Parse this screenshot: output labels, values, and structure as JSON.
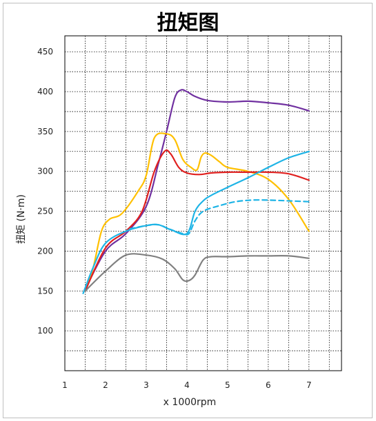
{
  "chart_data": {
    "type": "line",
    "title": "扭矩图",
    "xlabel": "x 1000rpm",
    "ylabel": "扭矩 (N·m)",
    "xlim": [
      1,
      7.8
    ],
    "ylim": [
      50,
      470
    ],
    "x_ticks": [
      "1",
      "2",
      "3",
      "4",
      "5",
      "6",
      "7"
    ],
    "y_ticks": [
      "100",
      "150",
      "200",
      "250",
      "300",
      "350",
      "400",
      "450"
    ],
    "grid": true,
    "legend": "none",
    "series": [
      {
        "color": "#7030a0",
        "style": "solid",
        "points": [
          [
            1.5,
            152
          ],
          [
            2.0,
            200
          ],
          [
            2.5,
            222
          ],
          [
            3.0,
            256
          ],
          [
            3.3,
            310
          ],
          [
            3.5,
            350
          ],
          [
            3.7,
            392
          ],
          [
            3.85,
            402
          ],
          [
            4.0,
            400
          ],
          [
            4.2,
            394
          ],
          [
            4.5,
            389
          ],
          [
            5.0,
            387
          ],
          [
            5.5,
            388
          ],
          [
            6.0,
            386
          ],
          [
            6.5,
            383
          ],
          [
            7.0,
            376
          ]
        ]
      },
      {
        "color": "#ffc000",
        "style": "solid",
        "points": [
          [
            1.5,
            150
          ],
          [
            1.7,
            180
          ],
          [
            1.9,
            225
          ],
          [
            2.1,
            240
          ],
          [
            2.4,
            247
          ],
          [
            2.8,
            275
          ],
          [
            3.0,
            295
          ],
          [
            3.2,
            342
          ],
          [
            3.5,
            347
          ],
          [
            3.7,
            340
          ],
          [
            3.9,
            315
          ],
          [
            4.1,
            305
          ],
          [
            4.25,
            302
          ],
          [
            4.35,
            318
          ],
          [
            4.45,
            323
          ],
          [
            4.6,
            320
          ],
          [
            4.8,
            312
          ],
          [
            5.0,
            305
          ],
          [
            5.5,
            300
          ],
          [
            6.0,
            290
          ],
          [
            6.5,
            265
          ],
          [
            7.0,
            225
          ]
        ]
      },
      {
        "color": "#e0201f",
        "style": "solid",
        "points": [
          [
            1.5,
            150
          ],
          [
            2.0,
            204
          ],
          [
            2.5,
            225
          ],
          [
            2.9,
            250
          ],
          [
            3.2,
            300
          ],
          [
            3.45,
            325
          ],
          [
            3.6,
            322
          ],
          [
            3.8,
            305
          ],
          [
            4.0,
            298
          ],
          [
            4.3,
            296
          ],
          [
            4.6,
            298
          ],
          [
            5.0,
            299
          ],
          [
            5.5,
            299
          ],
          [
            6.0,
            299
          ],
          [
            6.5,
            297
          ],
          [
            7.0,
            289
          ]
        ]
      },
      {
        "color": "#1eb4e6",
        "style": "solid",
        "points": [
          [
            1.45,
            147
          ],
          [
            1.7,
            180
          ],
          [
            2.0,
            210
          ],
          [
            2.5,
            225
          ],
          [
            3.0,
            232
          ],
          [
            3.3,
            233
          ],
          [
            3.6,
            227
          ],
          [
            4.0,
            222
          ],
          [
            4.2,
            250
          ],
          [
            4.4,
            263
          ],
          [
            4.6,
            270
          ],
          [
            5.0,
            280
          ],
          [
            5.5,
            292
          ],
          [
            6.0,
            305
          ],
          [
            6.5,
            317
          ],
          [
            7.0,
            325
          ]
        ]
      },
      {
        "color": "#1eb4e6",
        "style": "dashed",
        "points": [
          [
            2.6,
            228
          ],
          [
            3.0,
            232
          ],
          [
            3.3,
            233
          ],
          [
            3.6,
            227
          ],
          [
            3.9,
            222
          ],
          [
            4.05,
            222
          ],
          [
            4.2,
            238
          ],
          [
            4.4,
            250
          ],
          [
            4.8,
            257
          ],
          [
            5.2,
            262
          ],
          [
            5.6,
            264
          ],
          [
            6.0,
            264
          ],
          [
            6.5,
            263
          ],
          [
            7.0,
            262
          ]
        ]
      },
      {
        "color": "#808080",
        "style": "solid",
        "points": [
          [
            1.5,
            150
          ],
          [
            2.0,
            175
          ],
          [
            2.5,
            195
          ],
          [
            3.0,
            195
          ],
          [
            3.4,
            190
          ],
          [
            3.7,
            178
          ],
          [
            3.9,
            164
          ],
          [
            4.05,
            163
          ],
          [
            4.2,
            170
          ],
          [
            4.4,
            189
          ],
          [
            4.6,
            193
          ],
          [
            5.0,
            193
          ],
          [
            5.5,
            194
          ],
          [
            6.0,
            194
          ],
          [
            6.5,
            194
          ],
          [
            7.0,
            191
          ]
        ]
      }
    ]
  }
}
